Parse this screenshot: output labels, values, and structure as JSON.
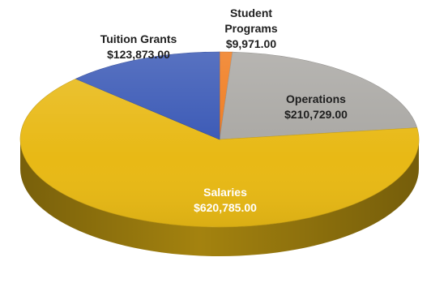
{
  "chart_data": {
    "type": "pie",
    "style": "3d",
    "slices": [
      {
        "label": "Student Programs",
        "label_lines": [
          "Student",
          "Programs"
        ],
        "value_text": "$9,971.00",
        "value": 9971.0,
        "color": "#f07a1c",
        "label_color": "#1f1f1f"
      },
      {
        "label": "Operations",
        "label_lines": [
          "Operations"
        ],
        "value_text": "$210,729.00",
        "value": 210729.0,
        "color": "#a9a7a3",
        "label_color": "#1f1f1f"
      },
      {
        "label": "Salaries",
        "label_lines": [
          "Salaries"
        ],
        "value_text": "$620,785.00",
        "value": 620785.0,
        "color": "#e8b915",
        "label_color": "#ffffff"
      },
      {
        "label": "Tuition Grants",
        "label_lines": [
          "Tuition Grants"
        ],
        "value_text": "$123,873.00",
        "value": 123873.0,
        "color": "#3857b5",
        "label_color": "#1f1f1f"
      }
    ]
  }
}
